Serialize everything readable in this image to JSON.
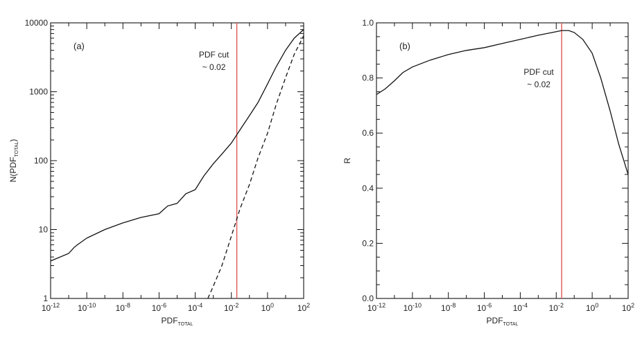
{
  "chart_data": [
    {
      "type": "line",
      "panel_label": "(a)",
      "xlabel": "PDF",
      "xlabel_sub": "TOTAL",
      "ylabel": "N(PDF",
      "ylabel_sub": "TOTAL",
      "ylabel_close": ")",
      "xscale": "log",
      "yscale": "log",
      "xlim": [
        1e-12,
        100
      ],
      "ylim": [
        1,
        10000
      ],
      "x_tick_labels": [
        {
          "v": 1e-12,
          "base": "10",
          "exp": "-12"
        },
        {
          "v": 1e-10,
          "base": "10",
          "exp": "-10"
        },
        {
          "v": 1e-08,
          "base": "10",
          "exp": "-8"
        },
        {
          "v": 1e-06,
          "base": "10",
          "exp": "-6"
        },
        {
          "v": 0.0001,
          "base": "10",
          "exp": "-4"
        },
        {
          "v": 0.01,
          "base": "10",
          "exp": "-2"
        },
        {
          "v": 1,
          "base": "10",
          "exp": "0"
        },
        {
          "v": 100,
          "base": "10",
          "exp": "2"
        }
      ],
      "y_tick_labels": [
        {
          "v": 1,
          "text": "1"
        },
        {
          "v": 10,
          "text": "10"
        },
        {
          "v": 100,
          "text": "100"
        },
        {
          "v": 1000,
          "text": "1000"
        },
        {
          "v": 10000,
          "text": "10000"
        }
      ],
      "annotation": {
        "line1": "PDF cut",
        "line2": "~ 0.02",
        "x": 0.02
      },
      "series": [
        {
          "style": "solid",
          "x": [
            1e-12,
            1e-11,
            2e-11,
            3e-11,
            1e-10,
            1e-09,
            1e-08,
            1e-07,
            1e-06,
            2e-06,
            3e-06,
            1e-05,
            3e-05,
            0.0001,
            0.0003,
            0.001,
            0.003,
            0.01,
            0.03,
            0.1,
            0.3,
            1,
            3,
            10,
            30,
            100
          ],
          "y": [
            3.5,
            4.5,
            5.5,
            6,
            7.5,
            10,
            12.5,
            15,
            17,
            20,
            22,
            24,
            33,
            38,
            60,
            90,
            125,
            180,
            280,
            450,
            700,
            1300,
            2300,
            4000,
            6000,
            8000
          ]
        },
        {
          "style": "dashed",
          "x": [
            0.0005,
            0.001,
            0.003,
            0.01,
            0.03,
            0.1,
            0.3,
            1,
            3,
            10,
            30,
            100
          ],
          "y": [
            1,
            1.5,
            3,
            8,
            20,
            45,
            110,
            250,
            650,
            1600,
            3500,
            6500
          ]
        }
      ]
    },
    {
      "type": "line",
      "panel_label": "(b)",
      "xlabel": "PDF",
      "xlabel_sub": "TOTAL",
      "ylabel": "R",
      "xscale": "log",
      "yscale": "linear",
      "xlim": [
        1e-12,
        100
      ],
      "ylim": [
        0,
        1.0
      ],
      "x_tick_labels": [
        {
          "v": 1e-12,
          "base": "10",
          "exp": "-12"
        },
        {
          "v": 1e-10,
          "base": "10",
          "exp": "-10"
        },
        {
          "v": 1e-08,
          "base": "10",
          "exp": "-8"
        },
        {
          "v": 1e-06,
          "base": "10",
          "exp": "-6"
        },
        {
          "v": 0.0001,
          "base": "10",
          "exp": "-4"
        },
        {
          "v": 0.01,
          "base": "10",
          "exp": "-2"
        },
        {
          "v": 1,
          "base": "10",
          "exp": "0"
        },
        {
          "v": 100,
          "base": "10",
          "exp": "2"
        }
      ],
      "y_tick_labels": [
        {
          "v": 0.0,
          "text": "0.0"
        },
        {
          "v": 0.2,
          "text": "0.2"
        },
        {
          "v": 0.4,
          "text": "0.4"
        },
        {
          "v": 0.6,
          "text": "0.6"
        },
        {
          "v": 0.8,
          "text": "0.8"
        },
        {
          "v": 1.0,
          "text": "1.0"
        }
      ],
      "annotation": {
        "line1": "PDF cut",
        "line2": "~ 0.02",
        "x": 0.02
      },
      "series": [
        {
          "style": "solid",
          "x": [
            1e-12,
            3e-12,
            1e-11,
            3e-11,
            1e-10,
            1e-09,
            1e-08,
            1e-07,
            1e-06,
            1e-05,
            0.0001,
            0.001,
            0.01,
            0.02,
            0.05,
            0.1,
            0.3,
            1,
            3,
            10,
            30,
            100
          ],
          "y": [
            0.74,
            0.76,
            0.79,
            0.82,
            0.84,
            0.865,
            0.885,
            0.9,
            0.91,
            0.925,
            0.94,
            0.955,
            0.968,
            0.972,
            0.972,
            0.965,
            0.94,
            0.89,
            0.8,
            0.68,
            0.56,
            0.45
          ]
        }
      ]
    }
  ]
}
